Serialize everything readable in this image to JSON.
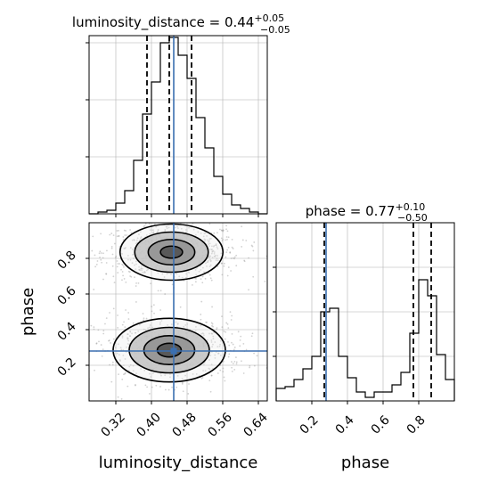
{
  "colors": {
    "truth": "#3b6fb0",
    "hist": "#000000",
    "quantile": "#000000",
    "grid": "#b0b0b0",
    "scatter": "#9a9a9a",
    "contour_fills": [
      "#ebebeb",
      "#c2c2c2",
      "#8f8f8f",
      "#4d4d4d"
    ]
  },
  "chart_data": [
    {
      "panel": "luminosity_distance-marginal",
      "type": "histogram",
      "title_prefix": "luminosity_distance = 0.44",
      "title_sup": "+0.05",
      "title_sub": "−0.05",
      "xlim": [
        0.26,
        0.66
      ],
      "ylim": [
        0,
        1.0
      ],
      "grid": true,
      "x_ticks": [
        0.32,
        0.4,
        0.48,
        0.56,
        0.64
      ],
      "y_ticks": [
        0.32,
        0.64,
        0.96
      ],
      "bin_edges": [
        0.26,
        0.28,
        0.3,
        0.32,
        0.34,
        0.36,
        0.38,
        0.4,
        0.42,
        0.44,
        0.46,
        0.48,
        0.5,
        0.52,
        0.54,
        0.56,
        0.58,
        0.6,
        0.62,
        0.64,
        0.66
      ],
      "counts": [
        0.0,
        0.01,
        0.02,
        0.06,
        0.13,
        0.3,
        0.56,
        0.74,
        0.96,
        0.99,
        0.89,
        0.76,
        0.54,
        0.37,
        0.21,
        0.11,
        0.05,
        0.03,
        0.01,
        0.0
      ],
      "quantiles": [
        0.39,
        0.44,
        0.49
      ],
      "truth": 0.45
    },
    {
      "panel": "phase-vs-luminosity_distance",
      "type": "scatter-contour",
      "xlim": [
        0.26,
        0.66
      ],
      "ylim": [
        0.0,
        1.0
      ],
      "grid": true,
      "xlabel": "luminosity_distance",
      "ylabel": "phase",
      "x_ticks": [
        0.32,
        0.4,
        0.48,
        0.56,
        0.64
      ],
      "x_tick_labels": [
        "0.32",
        "0.40",
        "0.48",
        "0.56",
        "0.64"
      ],
      "y_ticks": [
        0.2,
        0.4,
        0.6,
        0.8
      ],
      "y_tick_labels": [
        "0.2",
        "0.4",
        "0.6",
        "0.8"
      ],
      "modes": [
        {
          "cx": 0.445,
          "cy": 0.835,
          "sx": 0.055,
          "sy": 0.075,
          "weight": 0.55
        },
        {
          "cx": 0.44,
          "cy": 0.285,
          "sx": 0.06,
          "sy": 0.085,
          "weight": 0.45
        }
      ],
      "truth": {
        "x": 0.45,
        "y": 0.28
      }
    },
    {
      "panel": "phase-marginal",
      "type": "histogram",
      "title_prefix": "phase = 0.77",
      "title_sup": "+0.10",
      "title_sub": "−0.50",
      "xlim": [
        0.0,
        1.0
      ],
      "ylim": [
        0,
        1.0
      ],
      "grid": true,
      "xlabel": "phase",
      "x_ticks": [
        0.2,
        0.4,
        0.6,
        0.8
      ],
      "x_tick_labels": [
        "0.2",
        "0.4",
        "0.6",
        "0.8"
      ],
      "y_ticks": [
        0.25,
        0.5,
        0.75
      ],
      "bin_edges": [
        0.0,
        0.05,
        0.1,
        0.15,
        0.2,
        0.25,
        0.3,
        0.35,
        0.4,
        0.45,
        0.5,
        0.55,
        0.6,
        0.65,
        0.7,
        0.75,
        0.8,
        0.85,
        0.9,
        0.95,
        1.0
      ],
      "counts": [
        0.07,
        0.08,
        0.12,
        0.18,
        0.25,
        0.5,
        0.52,
        0.25,
        0.13,
        0.05,
        0.02,
        0.05,
        0.05,
        0.09,
        0.16,
        0.38,
        0.68,
        0.59,
        0.26,
        0.12
      ],
      "quantiles": [
        0.27,
        0.77,
        0.87
      ],
      "truth": 0.28
    }
  ]
}
